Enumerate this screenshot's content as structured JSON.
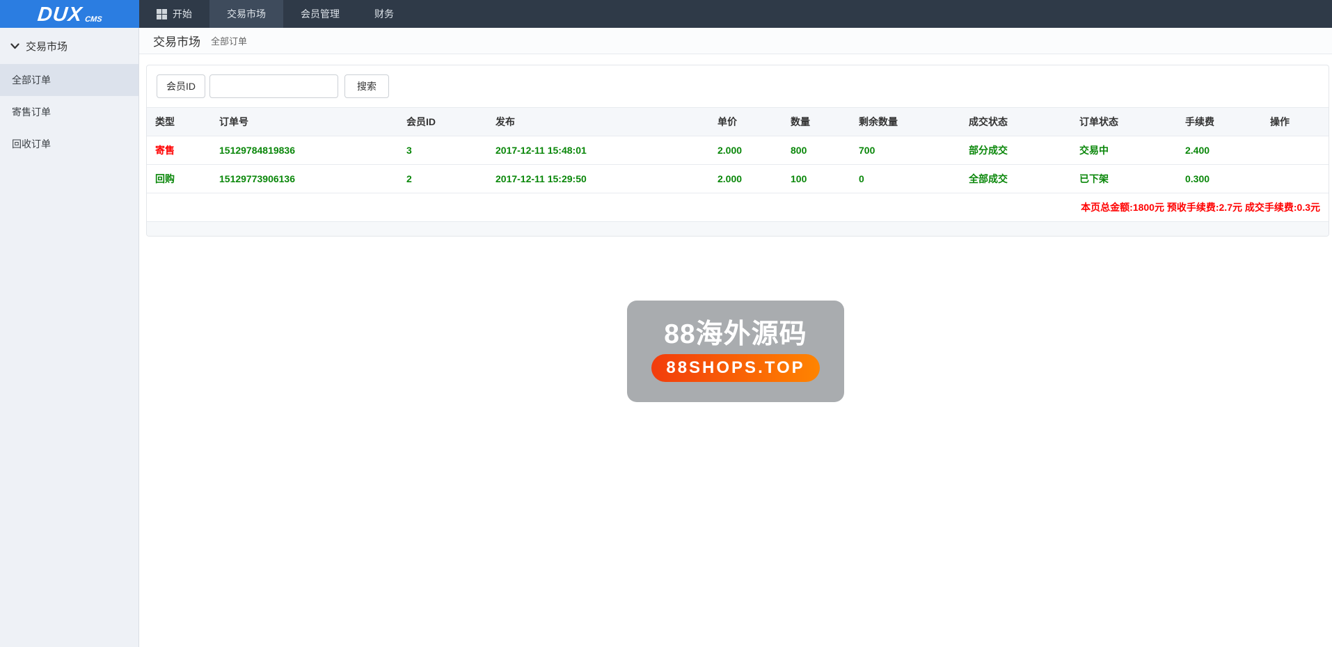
{
  "brand": {
    "name": "DUX",
    "suffix": "CMS"
  },
  "topnav": {
    "items": [
      {
        "id": "start",
        "label": "开始",
        "icon": "grid-icon",
        "active": false
      },
      {
        "id": "market",
        "label": "交易市场",
        "icon": "",
        "active": true
      },
      {
        "id": "members",
        "label": "会员管理",
        "icon": "",
        "active": false
      },
      {
        "id": "finance",
        "label": "财务",
        "icon": "",
        "active": false
      }
    ]
  },
  "sidebar": {
    "section": {
      "label": "交易市场",
      "icon": "chevron-down-icon"
    },
    "items": [
      {
        "id": "all-orders",
        "label": "全部订单",
        "active": true
      },
      {
        "id": "consign-orders",
        "label": "寄售订单",
        "active": false
      },
      {
        "id": "recycle-orders",
        "label": "回收订单",
        "active": false
      }
    ]
  },
  "breadcrumb": {
    "title": "交易市场",
    "sub": "全部订单"
  },
  "search": {
    "label": "会员ID",
    "value": "",
    "button": "搜索"
  },
  "table": {
    "headers": [
      "类型",
      "订单号",
      "会员ID",
      "发布",
      "单价",
      "数量",
      "剩余数量",
      "成交状态",
      "订单状态",
      "手续费",
      "操作"
    ],
    "rows": [
      {
        "type": "寄售",
        "type_color": "red",
        "order_no": "15129784819836",
        "member_id": "3",
        "published": "2017-12-11 15:48:01",
        "price": "2.000",
        "qty": "800",
        "remain": "700",
        "deal_status": "部分成交",
        "order_status": "交易中",
        "fee": "2.400",
        "action": ""
      },
      {
        "type": "回购",
        "type_color": "green",
        "order_no": "15129773906136",
        "member_id": "2",
        "published": "2017-12-11 15:29:50",
        "price": "2.000",
        "qty": "100",
        "remain": "0",
        "deal_status": "全部成交",
        "order_status": "已下架",
        "fee": "0.300",
        "action": ""
      }
    ],
    "summary": "本页总金额:1800元 预收手续费:2.7元 成交手续费:0.3元"
  },
  "watermark": {
    "title": "88海外源码",
    "badge": "88SHOPS.TOP"
  },
  "colors": {
    "accent_blue": "#2b7de1",
    "nav_dark": "#2f3a48",
    "nav_active": "#3e4b5c",
    "sidebar_bg": "#eef1f6",
    "sidebar_active": "#dce2ec",
    "green": "#0a870a",
    "red": "#ff0000",
    "badge_gradient_start": "#f23c0c",
    "badge_gradient_end": "#ff8400"
  }
}
